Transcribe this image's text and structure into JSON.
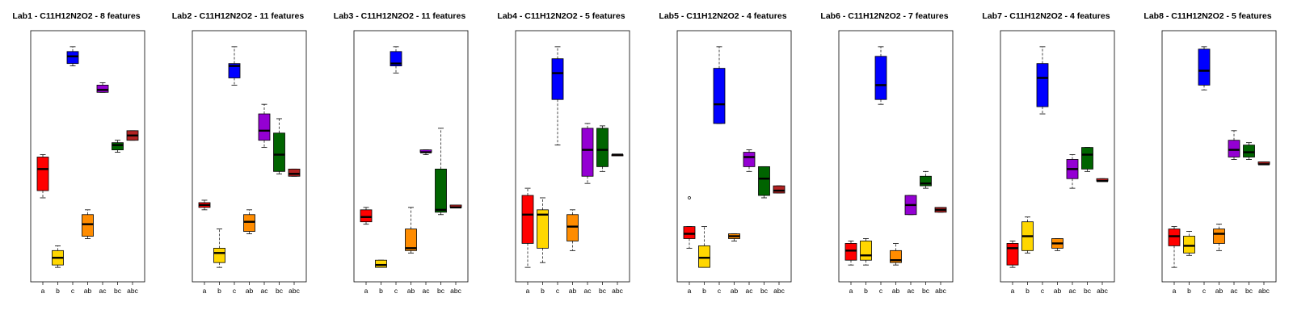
{
  "chart_data": [
    {
      "type": "box",
      "title": "Lab1 - C11H12N2O2 - 8 features",
      "categories": [
        "a",
        "b",
        "c",
        "ab",
        "ac",
        "bc",
        "abc"
      ],
      "ylim": [
        0,
        1
      ],
      "boxes": [
        {
          "category": "a",
          "color": "#FF0000",
          "min": 0.33,
          "q1": 0.36,
          "median": 0.45,
          "q3": 0.5,
          "max": 0.51
        },
        {
          "category": "b",
          "color": "#FFD700",
          "min": 0.04,
          "q1": 0.05,
          "median": 0.08,
          "q3": 0.11,
          "max": 0.13
        },
        {
          "category": "c",
          "color": "#0000FF",
          "min": 0.88,
          "q1": 0.89,
          "median": 0.92,
          "q3": 0.94,
          "max": 0.96
        },
        {
          "category": "ab",
          "color": "#FF8C00",
          "min": 0.16,
          "q1": 0.17,
          "median": 0.22,
          "q3": 0.26,
          "max": 0.28
        },
        {
          "category": "ac",
          "color": "#9400D3",
          "min": 0.77,
          "q1": 0.77,
          "median": 0.78,
          "q3": 0.8,
          "max": 0.81
        },
        {
          "category": "bc",
          "color": "#006400",
          "min": 0.52,
          "q1": 0.53,
          "median": 0.55,
          "q3": 0.56,
          "max": 0.57
        },
        {
          "category": "abc",
          "color": "#B22222",
          "min": 0.57,
          "q1": 0.57,
          "median": 0.59,
          "q3": 0.61,
          "max": 0.61
        }
      ]
    },
    {
      "type": "box",
      "title": "Lab2 - C11H12N2O2 - 11 features",
      "categories": [
        "a",
        "b",
        "c",
        "ab",
        "ac",
        "bc",
        "abc"
      ],
      "ylim": [
        0,
        1
      ],
      "boxes": [
        {
          "category": "a",
          "color": "#FF0000",
          "min": 0.28,
          "q1": 0.29,
          "median": 0.3,
          "q3": 0.31,
          "max": 0.32
        },
        {
          "category": "b",
          "color": "#FFD700",
          "min": 0.04,
          "q1": 0.06,
          "median": 0.1,
          "q3": 0.12,
          "max": 0.2
        },
        {
          "category": "c",
          "color": "#0000FF",
          "min": 0.8,
          "q1": 0.83,
          "median": 0.88,
          "q3": 0.89,
          "max": 0.96
        },
        {
          "category": "ab",
          "color": "#FF8C00",
          "min": 0.18,
          "q1": 0.19,
          "median": 0.23,
          "q3": 0.26,
          "max": 0.28
        },
        {
          "category": "ac",
          "color": "#9400D3",
          "min": 0.54,
          "q1": 0.57,
          "median": 0.61,
          "q3": 0.68,
          "max": 0.72
        },
        {
          "category": "bc",
          "color": "#006400",
          "min": 0.43,
          "q1": 0.44,
          "median": 0.51,
          "q3": 0.6,
          "max": 0.66
        },
        {
          "category": "abc",
          "color": "#B22222",
          "min": 0.42,
          "q1": 0.42,
          "median": 0.43,
          "q3": 0.45,
          "max": 0.45
        }
      ]
    },
    {
      "type": "box",
      "title": "Lab3 - C11H12N2O2 - 11 features",
      "categories": [
        "a",
        "b",
        "c",
        "ab",
        "ac",
        "bc",
        "abc"
      ],
      "ylim": [
        0,
        1
      ],
      "boxes": [
        {
          "category": "a",
          "color": "#FF0000",
          "min": 0.22,
          "q1": 0.23,
          "median": 0.25,
          "q3": 0.28,
          "max": 0.29
        },
        {
          "category": "b",
          "color": "#FFD700",
          "min": 0.04,
          "q1": 0.04,
          "median": 0.05,
          "q3": 0.07,
          "max": 0.07
        },
        {
          "category": "c",
          "color": "#0000FF",
          "min": 0.85,
          "q1": 0.88,
          "median": 0.89,
          "q3": 0.94,
          "max": 0.96
        },
        {
          "category": "ab",
          "color": "#FF8C00",
          "min": 0.1,
          "q1": 0.11,
          "median": 0.12,
          "q3": 0.2,
          "max": 0.29
        },
        {
          "category": "ac",
          "color": "#9400D3",
          "min": 0.51,
          "q1": 0.52,
          "median": 0.52,
          "q3": 0.53,
          "max": 0.53
        },
        {
          "category": "bc",
          "color": "#006400",
          "min": 0.26,
          "q1": 0.27,
          "median": 0.28,
          "q3": 0.45,
          "max": 0.62
        },
        {
          "category": "abc",
          "color": "#B22222",
          "min": 0.29,
          "q1": 0.29,
          "median": 0.29,
          "q3": 0.3,
          "max": 0.3
        }
      ]
    },
    {
      "type": "box",
      "title": "Lab4 - C11H12N2O2 - 5 features",
      "categories": [
        "a",
        "b",
        "c",
        "ab",
        "ac",
        "bc",
        "abc"
      ],
      "ylim": [
        0,
        1
      ],
      "boxes": [
        {
          "category": "a",
          "color": "#FF0000",
          "min": 0.04,
          "q1": 0.14,
          "median": 0.26,
          "q3": 0.34,
          "max": 0.37
        },
        {
          "category": "b",
          "color": "#FFD700",
          "min": 0.06,
          "q1": 0.12,
          "median": 0.26,
          "q3": 0.28,
          "max": 0.33
        },
        {
          "category": "c",
          "color": "#0000FF",
          "min": 0.55,
          "q1": 0.74,
          "median": 0.85,
          "q3": 0.91,
          "max": 0.96
        },
        {
          "category": "ab",
          "color": "#FF8C00",
          "min": 0.11,
          "q1": 0.15,
          "median": 0.21,
          "q3": 0.26,
          "max": 0.28
        },
        {
          "category": "ac",
          "color": "#9400D3",
          "min": 0.39,
          "q1": 0.42,
          "median": 0.53,
          "q3": 0.62,
          "max": 0.64
        },
        {
          "category": "bc",
          "color": "#006400",
          "min": 0.44,
          "q1": 0.46,
          "median": 0.53,
          "q3": 0.62,
          "max": 0.63
        },
        {
          "category": "abc",
          "color": "#B22222",
          "min": 0.51,
          "q1": 0.51,
          "median": 0.51,
          "q3": 0.51,
          "max": 0.51
        }
      ]
    },
    {
      "type": "box",
      "title": "Lab5 - C11H12N2O2 - 4 features",
      "categories": [
        "a",
        "b",
        "c",
        "ab",
        "ac",
        "bc",
        "abc"
      ],
      "ylim": [
        0,
        1
      ],
      "boxes": [
        {
          "category": "a",
          "color": "#FF0000",
          "min": 0.12,
          "q1": 0.16,
          "median": 0.18,
          "q3": 0.21,
          "max": 0.21,
          "outliers": [
            0.33
          ]
        },
        {
          "category": "b",
          "color": "#FFD700",
          "min": 0.04,
          "q1": 0.04,
          "median": 0.08,
          "q3": 0.13,
          "max": 0.21
        },
        {
          "category": "c",
          "color": "#0000FF",
          "min": 0.64,
          "q1": 0.64,
          "median": 0.72,
          "q3": 0.87,
          "max": 0.96
        },
        {
          "category": "ab",
          "color": "#FF8C00",
          "min": 0.15,
          "q1": 0.16,
          "median": 0.17,
          "q3": 0.18,
          "max": 0.18
        },
        {
          "category": "ac",
          "color": "#9400D3",
          "min": 0.44,
          "q1": 0.46,
          "median": 0.5,
          "q3": 0.52,
          "max": 0.53
        },
        {
          "category": "bc",
          "color": "#006400",
          "min": 0.33,
          "q1": 0.34,
          "median": 0.41,
          "q3": 0.46,
          "max": 0.46
        },
        {
          "category": "abc",
          "color": "#B22222",
          "min": 0.35,
          "q1": 0.35,
          "median": 0.36,
          "q3": 0.38,
          "max": 0.38
        }
      ]
    },
    {
      "type": "box",
      "title": "Lab6 - C11H12N2O2 - 7 features",
      "categories": [
        "a",
        "b",
        "c",
        "ab",
        "ac",
        "bc",
        "abc"
      ],
      "ylim": [
        0,
        1
      ],
      "boxes": [
        {
          "category": "a",
          "color": "#FF0000",
          "min": 0.05,
          "q1": 0.07,
          "median": 0.11,
          "q3": 0.14,
          "max": 0.15
        },
        {
          "category": "b",
          "color": "#FFD700",
          "min": 0.05,
          "q1": 0.07,
          "median": 0.09,
          "q3": 0.15,
          "max": 0.16
        },
        {
          "category": "c",
          "color": "#0000FF",
          "min": 0.72,
          "q1": 0.74,
          "median": 0.8,
          "q3": 0.92,
          "max": 0.96
        },
        {
          "category": "ab",
          "color": "#FF8C00",
          "min": 0.05,
          "q1": 0.06,
          "median": 0.07,
          "q3": 0.11,
          "max": 0.14
        },
        {
          "category": "ac",
          "color": "#9400D3",
          "min": 0.26,
          "q1": 0.26,
          "median": 0.3,
          "q3": 0.34,
          "max": 0.34
        },
        {
          "category": "bc",
          "color": "#006400",
          "min": 0.37,
          "q1": 0.38,
          "median": 0.39,
          "q3": 0.42,
          "max": 0.44
        },
        {
          "category": "abc",
          "color": "#B22222",
          "min": 0.27,
          "q1": 0.27,
          "median": 0.28,
          "q3": 0.29,
          "max": 0.29
        }
      ]
    },
    {
      "type": "box",
      "title": "Lab7 - C11H12N2O2 - 4 features",
      "categories": [
        "a",
        "b",
        "c",
        "ab",
        "ac",
        "bc",
        "abc"
      ],
      "ylim": [
        0,
        1
      ],
      "boxes": [
        {
          "category": "a",
          "color": "#FF0000",
          "min": 0.04,
          "q1": 0.05,
          "median": 0.12,
          "q3": 0.14,
          "max": 0.15
        },
        {
          "category": "b",
          "color": "#FFD700",
          "min": 0.1,
          "q1": 0.11,
          "median": 0.17,
          "q3": 0.23,
          "max": 0.25
        },
        {
          "category": "c",
          "color": "#0000FF",
          "min": 0.68,
          "q1": 0.71,
          "median": 0.83,
          "q3": 0.89,
          "max": 0.96
        },
        {
          "category": "ab",
          "color": "#FF8C00",
          "min": 0.11,
          "q1": 0.12,
          "median": 0.14,
          "q3": 0.16,
          "max": 0.16
        },
        {
          "category": "ac",
          "color": "#9400D3",
          "min": 0.37,
          "q1": 0.41,
          "median": 0.45,
          "q3": 0.49,
          "max": 0.51
        },
        {
          "category": "bc",
          "color": "#006400",
          "min": 0.44,
          "q1": 0.45,
          "median": 0.51,
          "q3": 0.54,
          "max": 0.54
        },
        {
          "category": "abc",
          "color": "#B22222",
          "min": 0.4,
          "q1": 0.4,
          "median": 0.4,
          "q3": 0.41,
          "max": 0.41
        }
      ]
    },
    {
      "type": "box",
      "title": "Lab8 - C11H12N2O2 - 5 features",
      "categories": [
        "a",
        "b",
        "c",
        "ab",
        "ac",
        "bc",
        "abc"
      ],
      "ylim": [
        0,
        1
      ],
      "boxes": [
        {
          "category": "a",
          "color": "#FF0000",
          "min": 0.04,
          "q1": 0.13,
          "median": 0.17,
          "q3": 0.2,
          "max": 0.21
        },
        {
          "category": "b",
          "color": "#FFD700",
          "min": 0.09,
          "q1": 0.1,
          "median": 0.13,
          "q3": 0.17,
          "max": 0.19
        },
        {
          "category": "c",
          "color": "#0000FF",
          "min": 0.78,
          "q1": 0.8,
          "median": 0.86,
          "q3": 0.95,
          "max": 0.96
        },
        {
          "category": "ab",
          "color": "#FF8C00",
          "min": 0.11,
          "q1": 0.14,
          "median": 0.18,
          "q3": 0.2,
          "max": 0.22
        },
        {
          "category": "ac",
          "color": "#9400D3",
          "min": 0.49,
          "q1": 0.5,
          "median": 0.53,
          "q3": 0.57,
          "max": 0.61
        },
        {
          "category": "bc",
          "color": "#006400",
          "min": 0.49,
          "q1": 0.5,
          "median": 0.52,
          "q3": 0.55,
          "max": 0.56
        },
        {
          "category": "abc",
          "color": "#B22222",
          "min": 0.47,
          "q1": 0.47,
          "median": 0.47,
          "q3": 0.48,
          "max": 0.48
        }
      ]
    }
  ]
}
